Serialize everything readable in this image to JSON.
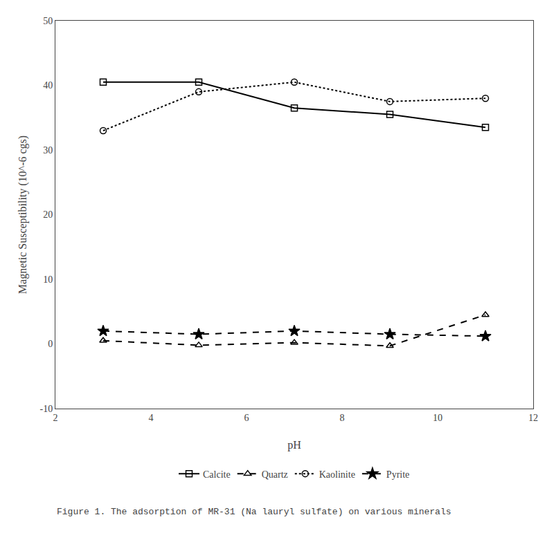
{
  "chart_data": {
    "type": "line",
    "x": [
      3,
      5,
      7,
      9,
      11
    ],
    "series": [
      {
        "name": "Calcite",
        "color": "#000000",
        "marker": "square-open",
        "line_style": "solid",
        "values": [
          40.5,
          40.5,
          36.5,
          35.5,
          33.5
        ]
      },
      {
        "name": "Quartz",
        "color": "#000000",
        "marker": "triangle-open",
        "line_style": "dashed",
        "values": [
          0.5,
          -0.2,
          0.2,
          -0.3,
          4.5
        ]
      },
      {
        "name": "Kaolinite",
        "color": "#000000",
        "marker": "circle-open",
        "line_style": "dotted",
        "values": [
          33.0,
          39.0,
          40.5,
          37.5,
          38.0
        ]
      },
      {
        "name": "Pyrite",
        "color": "#000000",
        "marker": "star",
        "line_style": "dashed",
        "values": [
          2.0,
          1.5,
          2.0,
          1.5,
          1.2
        ]
      }
    ],
    "xlabel": "pH",
    "ylabel": "Magnetic Susceptibility (10^-6 cgs)",
    "xlim": [
      2,
      12
    ],
    "ylim": [
      -10,
      50
    ],
    "xticks": [
      2,
      4,
      6,
      8,
      10,
      12
    ],
    "yticks": [
      -10,
      0,
      10,
      20,
      30,
      40,
      50
    ],
    "caption": "Figure 1. The adsorption of MR-31 (Na lauryl sulfate) on various minerals",
    "grid": false,
    "legend": "bottom"
  }
}
